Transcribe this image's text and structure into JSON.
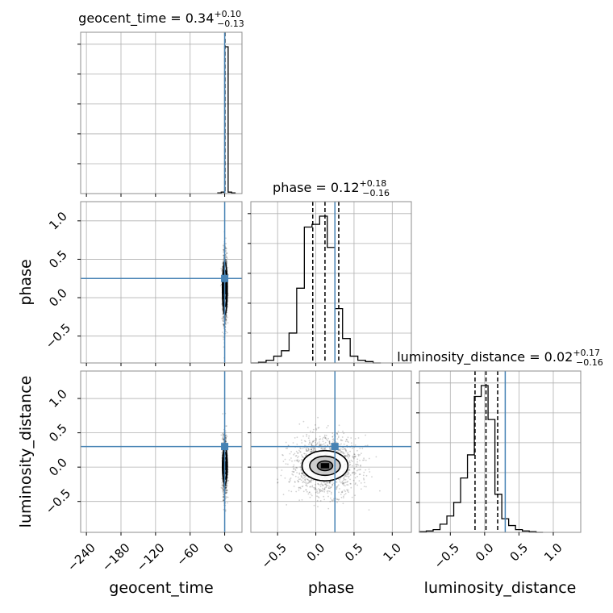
{
  "chart_data": {
    "type": "corner",
    "parameters": [
      "geocent_time",
      "phase",
      "luminosity_distance"
    ],
    "truths": {
      "geocent_time": 0.0,
      "phase": 0.25,
      "luminosity_distance": 0.3
    },
    "truth_color": "#4682b4",
    "grid": true,
    "axes": {
      "geocent_time": {
        "label": "geocent_time",
        "range": [
          -250,
          30
        ],
        "ticks": [
          -240,
          -180,
          -120,
          -60,
          0
        ],
        "tick_labels": [
          "−240",
          "−180",
          "−120",
          "−60",
          "0"
        ]
      },
      "phase": {
        "label": "phase",
        "range": [
          -0.85,
          1.25
        ],
        "ticks": [
          -0.5,
          0.0,
          0.5,
          1.0
        ],
        "tick_labels": [
          "−0.5",
          "0.0",
          "0.5",
          "1.0"
        ]
      },
      "luminosity_distance": {
        "label": "luminosity_distance",
        "range": [
          -0.95,
          1.4
        ],
        "ticks": [
          -0.5,
          0.0,
          0.5,
          1.0
        ],
        "tick_labels": [
          "−0.5",
          "0.0",
          "0.5",
          "1.0"
        ]
      }
    },
    "titles": [
      {
        "param": "geocent_time",
        "text": "geocent_time = 0.34",
        "sup": "+0.10",
        "sub": "−0.13"
      },
      {
        "param": "phase",
        "text": "phase = 0.12",
        "sup": "+0.18",
        "sub": "−0.16"
      },
      {
        "param": "luminosity_distance",
        "text": "luminosity_distance = 0.02",
        "sup": "+0.17",
        "sub": "−0.16"
      }
    ],
    "quantiles": {
      "geocent_time": [
        0.21,
        0.34,
        0.44
      ],
      "phase": [
        -0.04,
        0.12,
        0.3
      ],
      "luminosity_distance": [
        -0.14,
        0.02,
        0.19
      ]
    },
    "histograms": {
      "geocent_time": {
        "edges": [
          -12,
          -6,
          0,
          6,
          12,
          18
        ],
        "counts": [
          0.005,
          0.01,
          1.0,
          0.01,
          0.005
        ]
      },
      "phase": {
        "edges": [
          -0.85,
          -0.75,
          -0.65,
          -0.55,
          -0.45,
          -0.35,
          -0.25,
          -0.15,
          -0.05,
          0.05,
          0.15,
          0.25,
          0.35,
          0.45,
          0.55,
          0.65,
          0.75,
          0.85
        ],
        "counts": [
          0.0,
          0.005,
          0.02,
          0.05,
          0.09,
          0.22,
          0.55,
          1.0,
          1.02,
          1.08,
          0.85,
          0.4,
          0.18,
          0.05,
          0.02,
          0.01,
          0.0
        ]
      },
      "luminosity_distance": {
        "edges": [
          -0.95,
          -0.85,
          -0.75,
          -0.65,
          -0.55,
          -0.45,
          -0.35,
          -0.25,
          -0.15,
          -0.05,
          0.05,
          0.15,
          0.25,
          0.35,
          0.45,
          0.55,
          0.65,
          0.75,
          0.85
        ],
        "counts": [
          0.005,
          0.01,
          0.02,
          0.06,
          0.12,
          0.22,
          0.4,
          0.57,
          1.0,
          1.08,
          0.83,
          0.28,
          0.1,
          0.05,
          0.02,
          0.01,
          0.005,
          0.0
        ]
      }
    },
    "pairs": [
      {
        "x": "geocent_time",
        "y": "phase",
        "center": [
          0.34,
          0.12
        ],
        "sd": [
          1.5,
          0.18
        ],
        "contour_sd": [
          [
            1.8,
            0.14
          ],
          [
            3.0,
            0.24
          ],
          [
            4.2,
            0.34
          ]
        ]
      },
      {
        "x": "geocent_time",
        "y": "luminosity_distance",
        "center": [
          0.34,
          0.02
        ],
        "sd": [
          1.5,
          0.17
        ],
        "contour_sd": [
          [
            1.8,
            0.12
          ],
          [
            3.0,
            0.2
          ],
          [
            4.2,
            0.27
          ]
        ]
      },
      {
        "x": "phase",
        "y": "luminosity_distance",
        "center": [
          0.12,
          0.02
        ],
        "sd": [
          0.18,
          0.17
        ],
        "contour_sd": [
          [
            0.1,
            0.07
          ],
          [
            0.2,
            0.14
          ],
          [
            0.3,
            0.22
          ]
        ]
      }
    ]
  }
}
